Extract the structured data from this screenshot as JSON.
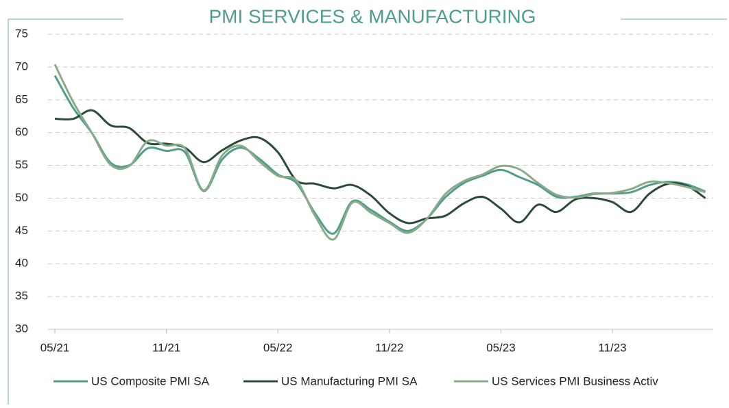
{
  "chart_data": {
    "type": "line",
    "title": "PMI SERVICES & MANUFACTURING",
    "categories": [
      "05/21",
      null,
      null,
      null,
      null,
      null,
      "11/21",
      null,
      null,
      null,
      null,
      null,
      "05/22",
      null,
      null,
      null,
      null,
      null,
      "11/22",
      null,
      null,
      null,
      null,
      null,
      "05/23",
      null,
      null,
      null,
      null,
      null,
      "11/23",
      null,
      null,
      null,
      null,
      null
    ],
    "series": [
      {
        "name": "US Composite PMI SA",
        "color": "#4f9e8a",
        "values": [
          68.7,
          63.7,
          59.9,
          55.4,
          55.0,
          57.6,
          57.2,
          57.0,
          51.1,
          55.9,
          57.7,
          56.0,
          53.6,
          52.3,
          47.7,
          44.6,
          49.5,
          48.2,
          46.4,
          45.0,
          46.8,
          50.1,
          52.3,
          53.4,
          54.3,
          53.2,
          52.0,
          50.2,
          50.2,
          50.7,
          50.7,
          50.9,
          52.0,
          52.5,
          52.1,
          51.0
        ]
      },
      {
        "name": "US Manufacturing PMI SA",
        "color": "#2b4a3c",
        "values": [
          62.1,
          62.1,
          63.4,
          61.1,
          60.7,
          58.4,
          58.3,
          57.7,
          55.5,
          57.3,
          58.8,
          59.2,
          57.0,
          52.7,
          52.2,
          51.5,
          52.0,
          50.4,
          47.7,
          46.2,
          46.9,
          47.3,
          49.2,
          50.2,
          48.4,
          46.3,
          49.0,
          47.9,
          49.8,
          50.0,
          49.4,
          47.9,
          50.7,
          52.2,
          51.9,
          50.0
        ]
      },
      {
        "name": "US Services PMI Business Activ",
        "color": "#8aab8a",
        "values": [
          70.4,
          64.6,
          59.9,
          55.1,
          54.9,
          58.7,
          58.0,
          57.6,
          51.2,
          56.5,
          58.0,
          55.6,
          53.4,
          52.7,
          47.3,
          43.7,
          49.3,
          47.8,
          46.2,
          44.7,
          46.8,
          50.6,
          52.6,
          53.6,
          54.9,
          54.4,
          52.3,
          50.5,
          50.1,
          50.6,
          50.8,
          51.4,
          52.5,
          52.3,
          51.7,
          50.9
        ]
      }
    ],
    "ylim": [
      30,
      75
    ],
    "yticks": [
      30,
      35,
      40,
      45,
      50,
      55,
      60,
      65,
      70,
      75
    ],
    "grid": true,
    "legend": "bottom"
  }
}
